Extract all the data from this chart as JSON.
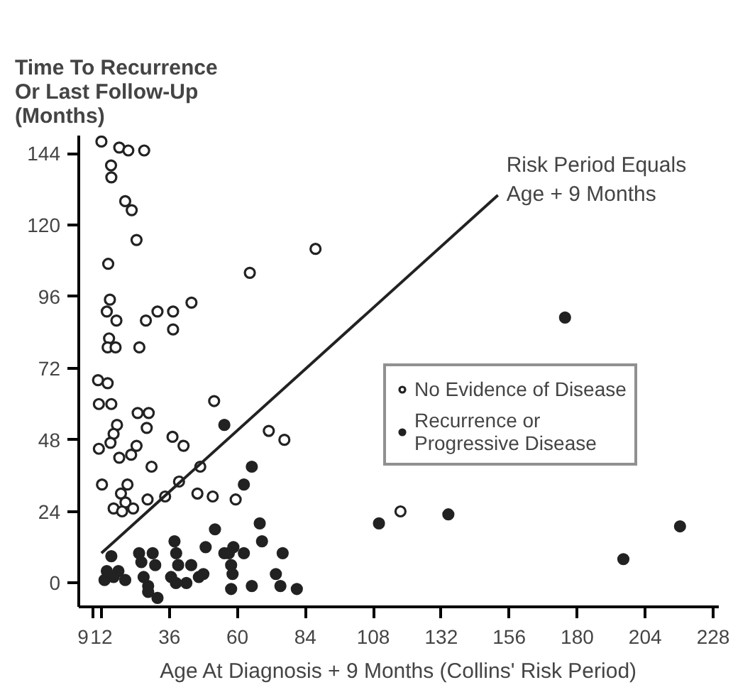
{
  "chart_data": {
    "type": "scatter",
    "ylabel": "Time To Recurrence\nOr Last Follow-Up\n(Months)",
    "xlabel": "Age At Diagnosis + 9 Months (Collins' Risk Period)",
    "xlim": [
      4,
      230
    ],
    "ylim": [
      -8,
      150
    ],
    "xticks": [
      9,
      12,
      36,
      60,
      84,
      108,
      132,
      156,
      180,
      204,
      228
    ],
    "yticks": [
      0,
      24,
      48,
      72,
      96,
      120,
      144
    ],
    "grid": false,
    "legend": "right",
    "annotations": [
      {
        "text": "Risk Period Equals\nAge + 9 Months",
        "x": 152,
        "y": 130
      }
    ],
    "series": [
      {
        "name": "No Evidence of Disease",
        "color": "#222222",
        "marker": "circle",
        "x": [
          12,
          18.3,
          21.5,
          27.1,
          15.4,
          15.5,
          20.4,
          22.7,
          24.4,
          14.4,
          64.4,
          15,
          13.9,
          17.3,
          27.7,
          31.8,
          37.3,
          43.8,
          37.3,
          14.7,
          14.2,
          17,
          25.4,
          10.8,
          14.2,
          11.1,
          15.5,
          24.8,
          28.7,
          51.8,
          17.5,
          16.3,
          15.2,
          28,
          24.4,
          22.5,
          18.3,
          11.1,
          37.1,
          41,
          29.7,
          46.9,
          12.2,
          21.2,
          18.9,
          20.5,
          16.3,
          19.3,
          23.2,
          28.3,
          34.5,
          39.4,
          45.9,
          51.3,
          59.4,
          87.6,
          71.1,
          76.6,
          117.6
        ],
        "values": [
          148,
          146,
          145,
          145,
          140,
          136,
          128,
          125,
          115,
          107,
          104,
          95,
          91,
          88,
          88,
          91,
          91,
          94,
          85,
          82,
          79,
          79,
          79,
          68,
          67,
          60,
          60,
          57,
          57,
          61,
          53,
          50,
          47,
          52,
          46,
          43,
          42,
          45,
          49,
          46,
          39,
          39,
          33,
          33,
          30,
          27,
          25,
          24,
          25,
          28,
          29,
          34,
          30,
          29,
          28,
          112,
          51,
          48,
          24
        ]
      },
      {
        "name": "Recurrence or\nProgressive Disease",
        "color": "#222222",
        "marker": "circle",
        "x": [
          175.7,
          134.5,
          196.3,
          216.3,
          110,
          65.1,
          62.3,
          67.9,
          68.7,
          62.3,
          76,
          73.6,
          65.1,
          75.2,
          81,
          55.4,
          15.5,
          52.1,
          25.3,
          30.1,
          37.8,
          38.4,
          48.8,
          55.4,
          58.6,
          26.1,
          31,
          39.1,
          43.7,
          57.8,
          13.9,
          18,
          16.3,
          13.1,
          20.4,
          26.9,
          28.5,
          36.6,
          42,
          48,
          46.4,
          58.3,
          57.8,
          28.5,
          31.8,
          38.3,
          57
        ],
        "values": [
          89,
          23,
          8,
          19,
          20,
          39,
          33,
          20,
          14,
          10,
          10,
          3,
          -1,
          -1,
          -2,
          53,
          9,
          18,
          10,
          10,
          14,
          10,
          12,
          10,
          12,
          7,
          6,
          6,
          6,
          6,
          4,
          4,
          2,
          1,
          1,
          2,
          -1,
          2,
          0,
          3,
          2,
          3,
          -2,
          -3,
          -5,
          0,
          10
        ]
      },
      {
        "type": "line",
        "color": "#222222",
        "marker": "none",
        "x": [
          12,
          152
        ],
        "values": [
          10,
          130
        ]
      }
    ]
  }
}
